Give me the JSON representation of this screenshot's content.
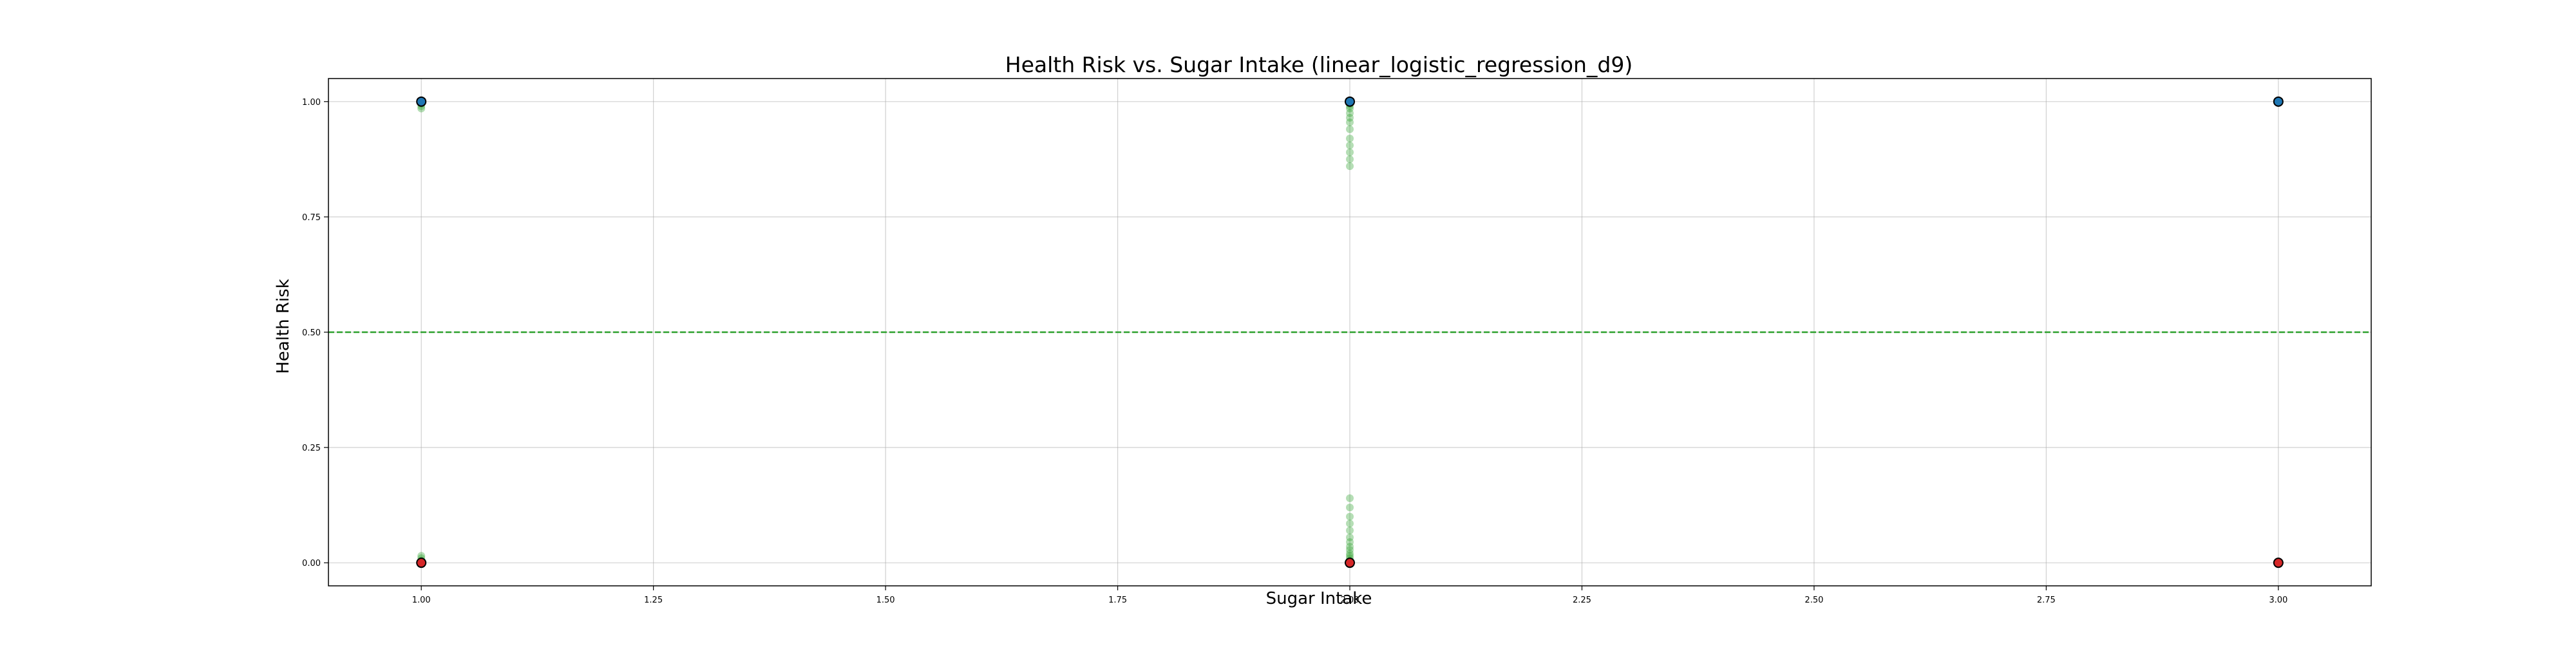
{
  "chart_data": {
    "type": "scatter",
    "title": "Health Risk vs. Sugar Intake (linear_logistic_regression_d9)",
    "xlabel": "Sugar Intake",
    "ylabel": "Health Risk",
    "xlim": [
      0.9,
      3.1
    ],
    "ylim": [
      -0.05,
      1.05
    ],
    "x_ticks": [
      "1.00",
      "1.25",
      "1.50",
      "1.75",
      "2.00",
      "2.25",
      "2.50",
      "2.75",
      "3.00"
    ],
    "y_ticks": [
      "0.00",
      "0.25",
      "0.50",
      "0.75",
      "1.00"
    ],
    "grid": true,
    "legend": "none",
    "threshold_line": {
      "y": 0.5,
      "style": "dashed",
      "color": "#2ca02c"
    },
    "series": [
      {
        "marker": "circle",
        "color": "#1f77b4",
        "x": [
          1.0,
          2.0,
          3.0
        ],
        "y": [
          1.0,
          1.0,
          1.0
        ]
      },
      {
        "marker": "circle",
        "color": "#d62728",
        "x": [
          1.0,
          2.0,
          3.0
        ],
        "y": [
          0.0,
          0.0,
          0.0
        ]
      },
      {
        "marker": "circle",
        "color": "#2ca02c",
        "x": [
          1.0,
          1.0,
          1.0,
          1.0,
          1.0,
          1.0,
          2.0,
          2.0,
          2.0,
          2.0,
          2.0,
          2.0,
          2.0,
          2.0,
          2.0,
          2.0,
          2.0,
          2.0,
          2.0,
          2.0,
          2.0,
          2.0,
          2.0,
          2.0,
          2.0,
          2.0,
          2.0,
          2.0,
          2.0,
          2.0,
          2.0,
          2.0,
          3.0,
          3.0
        ],
        "y": [
          0.99,
          0.985,
          0.995,
          0.005,
          0.01,
          0.015,
          0.86,
          0.875,
          0.89,
          0.905,
          0.92,
          0.94,
          0.955,
          0.965,
          0.975,
          0.985,
          0.99,
          0.995,
          0.14,
          0.12,
          0.1,
          0.085,
          0.07,
          0.055,
          0.045,
          0.035,
          0.028,
          0.02,
          0.015,
          0.01,
          0.005,
          0.002,
          0.999,
          0.001
        ]
      }
    ]
  }
}
